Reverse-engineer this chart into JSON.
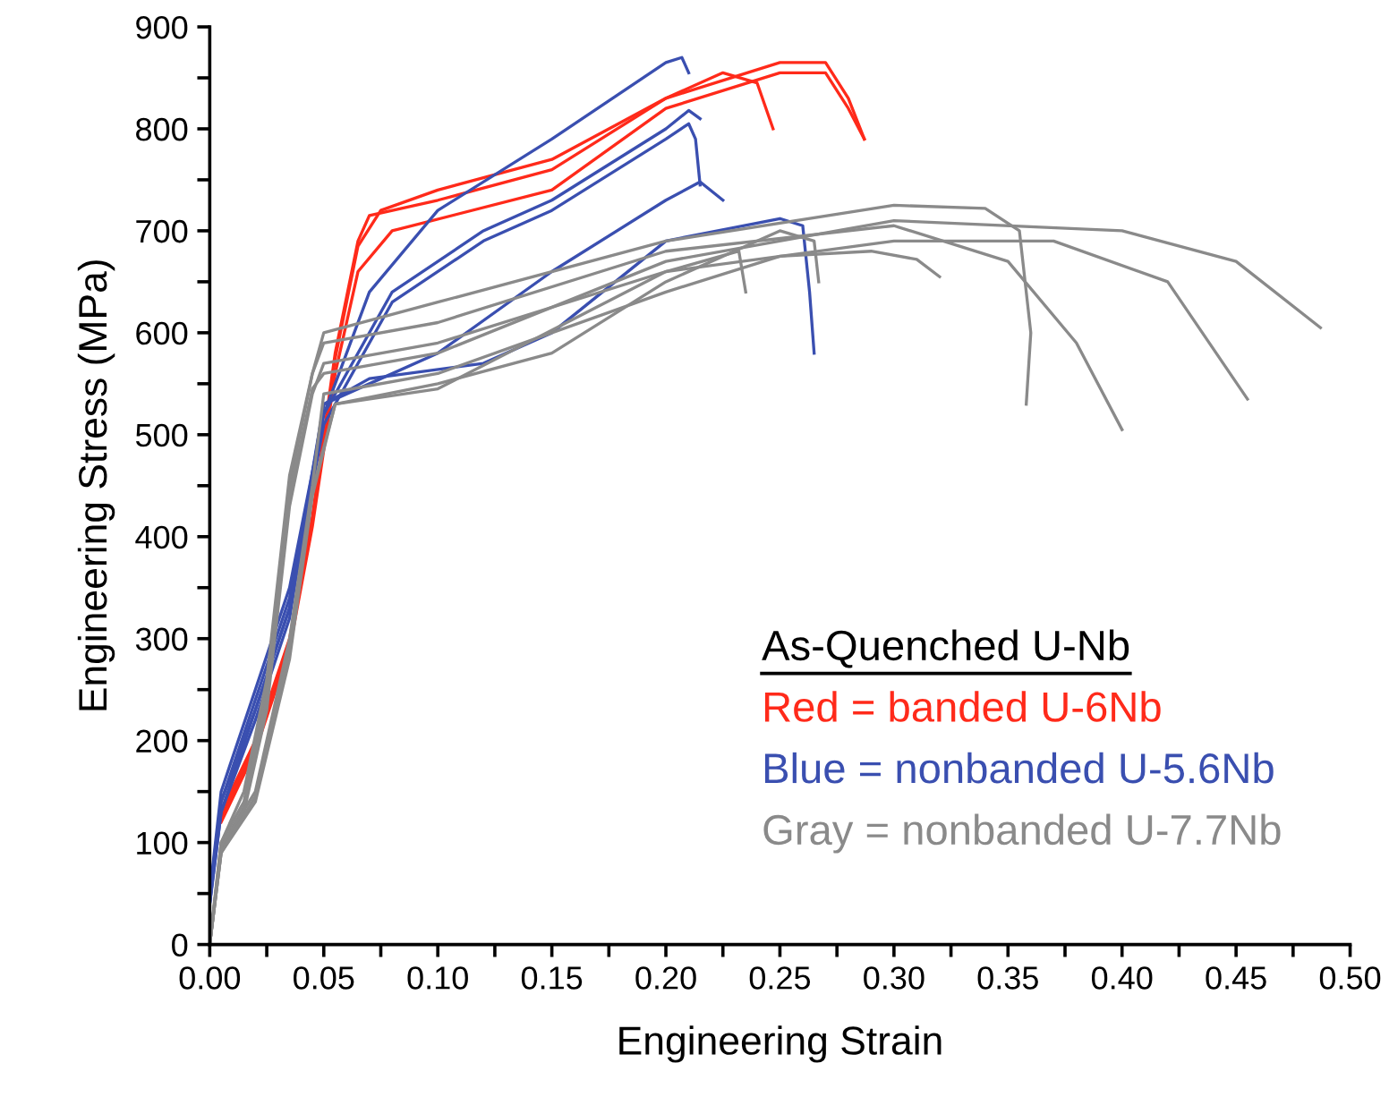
{
  "chart_data": {
    "type": "line",
    "xlabel": "Engineering Strain",
    "ylabel": "Engineering Stress (MPa)",
    "xlim": [
      0,
      0.5
    ],
    "ylim": [
      0,
      900
    ],
    "xticks": [
      {
        "value": 0,
        "label": "0.00"
      },
      {
        "value": 0.025,
        "label": null
      },
      {
        "value": 0.05,
        "label": "0.05"
      },
      {
        "value": 0.075,
        "label": null
      },
      {
        "value": 0.1,
        "label": "0.10"
      },
      {
        "value": 0.125,
        "label": null
      },
      {
        "value": 0.15,
        "label": "0.15"
      },
      {
        "value": 0.175,
        "label": null
      },
      {
        "value": 0.2,
        "label": "0.20"
      },
      {
        "value": 0.225,
        "label": null
      },
      {
        "value": 0.25,
        "label": "0.25"
      },
      {
        "value": 0.275,
        "label": null
      },
      {
        "value": 0.3,
        "label": "0.30"
      },
      {
        "value": 0.325,
        "label": null
      },
      {
        "value": 0.35,
        "label": "0.35"
      },
      {
        "value": 0.375,
        "label": null
      },
      {
        "value": 0.4,
        "label": "0.40"
      },
      {
        "value": 0.425,
        "label": null
      },
      {
        "value": 0.45,
        "label": "0.45"
      },
      {
        "value": 0.475,
        "label": null
      },
      {
        "value": 0.5,
        "label": "0.50"
      }
    ],
    "yticks": [
      0,
      {
        "value": 50,
        "label": null
      },
      100,
      {
        "value": 150,
        "label": null
      },
      200,
      {
        "value": 250,
        "label": null
      },
      300,
      {
        "value": 350,
        "label": null
      },
      400,
      {
        "value": 450,
        "label": null
      },
      500,
      {
        "value": 550,
        "label": null
      },
      600,
      {
        "value": 650,
        "label": null
      },
      700,
      {
        "value": 750,
        "label": null
      },
      800,
      {
        "value": 850,
        "label": null
      },
      900
    ],
    "grid": false,
    "marker": "none",
    "line_style": "solid",
    "annotations": [
      "As-Quenched U-Nb",
      "Red = banded U-6Nb",
      "Blue = nonbanded U-5.6Nb",
      "Gray = nonbanded U-7.7Nb"
    ],
    "series": [
      {
        "color": "#ff2a1a",
        "x": [
          0.005,
          0.02,
          0.035,
          0.045,
          0.055,
          0.065,
          0.07,
          0.1,
          0.15,
          0.2,
          0.225,
          0.24,
          0.247
        ],
        "values": [
          130,
          200,
          300,
          420,
          580,
          690,
          715,
          730,
          760,
          830,
          855,
          845,
          800
        ]
      },
      {
        "color": "#ff2a1a",
        "x": [
          0.005,
          0.02,
          0.035,
          0.045,
          0.055,
          0.065,
          0.075,
          0.1,
          0.15,
          0.2,
          0.25,
          0.27,
          0.28,
          0.287
        ],
        "values": [
          125,
          195,
          295,
          415,
          575,
          685,
          720,
          740,
          770,
          830,
          865,
          865,
          830,
          790
        ]
      },
      {
        "color": "#ff2a1a",
        "x": [
          0.005,
          0.02,
          0.035,
          0.045,
          0.055,
          0.065,
          0.08,
          0.15,
          0.2,
          0.25,
          0.27,
          0.28,
          0.287
        ],
        "values": [
          120,
          190,
          290,
          410,
          560,
          660,
          700,
          740,
          820,
          855,
          855,
          820,
          790
        ]
      },
      {
        "color": "#3a4fb0",
        "x": [
          0,
          0.005,
          0.02,
          0.035,
          0.05,
          0.07,
          0.1,
          0.15,
          0.2,
          0.207,
          0.21
        ],
        "values": [
          50,
          150,
          250,
          350,
          520,
          640,
          720,
          790,
          865,
          870,
          855
        ]
      },
      {
        "color": "#3a4fb0",
        "x": [
          0,
          0.005,
          0.02,
          0.035,
          0.05,
          0.08,
          0.12,
          0.15,
          0.2,
          0.21,
          0.215
        ],
        "values": [
          50,
          140,
          240,
          340,
          520,
          640,
          700,
          730,
          800,
          818,
          810
        ]
      },
      {
        "color": "#3a4fb0",
        "x": [
          0,
          0.005,
          0.02,
          0.035,
          0.05,
          0.08,
          0.12,
          0.15,
          0.2,
          0.21,
          0.213,
          0.215
        ],
        "values": [
          40,
          130,
          230,
          330,
          510,
          630,
          690,
          720,
          790,
          805,
          790,
          745
        ]
      },
      {
        "color": "#3a4fb0",
        "x": [
          0,
          0.005,
          0.02,
          0.035,
          0.05,
          0.07,
          0.1,
          0.15,
          0.2,
          0.215,
          0.225
        ],
        "values": [
          40,
          140,
          230,
          330,
          530,
          550,
          580,
          660,
          730,
          748,
          730
        ]
      },
      {
        "color": "#3a4fb0",
        "x": [
          0,
          0.005,
          0.02,
          0.035,
          0.05,
          0.07,
          0.12,
          0.15,
          0.2,
          0.25,
          0.26,
          0.263,
          0.265
        ],
        "values": [
          40,
          130,
          220,
          320,
          530,
          555,
          570,
          600,
          690,
          712,
          705,
          640,
          580
        ]
      },
      {
        "color": "#8a8a8a",
        "x": [
          0,
          0.005,
          0.015,
          0.025,
          0.035,
          0.045,
          0.05,
          0.1,
          0.2,
          0.3,
          0.34,
          0.355,
          0.36,
          0.358
        ],
        "values": [
          0,
          100,
          140,
          250,
          450,
          560,
          600,
          630,
          690,
          725,
          722,
          700,
          600,
          530
        ]
      },
      {
        "color": "#8a8a8a",
        "x": [
          0,
          0.005,
          0.015,
          0.025,
          0.035,
          0.045,
          0.05,
          0.1,
          0.2,
          0.3,
          0.35,
          0.38,
          0.4
        ],
        "values": [
          0,
          100,
          150,
          260,
          460,
          560,
          590,
          610,
          680,
          705,
          670,
          590,
          505
        ]
      },
      {
        "color": "#8a8a8a",
        "x": [
          0,
          0.005,
          0.015,
          0.025,
          0.035,
          0.045,
          0.05,
          0.1,
          0.2,
          0.3,
          0.37,
          0.42,
          0.455
        ],
        "values": [
          0,
          90,
          130,
          230,
          430,
          540,
          570,
          590,
          660,
          690,
          690,
          650,
          535
        ]
      },
      {
        "color": "#8a8a8a",
        "x": [
          0,
          0.005,
          0.015,
          0.025,
          0.035,
          0.045,
          0.05,
          0.1,
          0.2,
          0.3,
          0.4,
          0.45,
          0.487
        ],
        "values": [
          0,
          95,
          135,
          240,
          440,
          545,
          560,
          580,
          670,
          710,
          700,
          670,
          605
        ]
      },
      {
        "color": "#8a8a8a",
        "x": [
          0,
          0.005,
          0.02,
          0.035,
          0.045,
          0.05,
          0.1,
          0.2,
          0.25,
          0.29,
          0.31,
          0.32
        ],
        "values": [
          0,
          95,
          150,
          300,
          450,
          540,
          560,
          640,
          675,
          680,
          672,
          655
        ]
      },
      {
        "color": "#8a8a8a",
        "x": [
          0,
          0.005,
          0.02,
          0.035,
          0.045,
          0.055,
          0.1,
          0.2,
          0.232,
          0.235
        ],
        "values": [
          0,
          90,
          140,
          280,
          440,
          530,
          545,
          660,
          680,
          640
        ]
      },
      {
        "color": "#8a8a8a",
        "x": [
          0,
          0.005,
          0.02,
          0.035,
          0.045,
          0.055,
          0.1,
          0.15,
          0.2,
          0.25,
          0.265,
          0.267
        ],
        "values": [
          0,
          90,
          145,
          290,
          445,
          530,
          550,
          580,
          650,
          700,
          690,
          650
        ]
      }
    ]
  }
}
